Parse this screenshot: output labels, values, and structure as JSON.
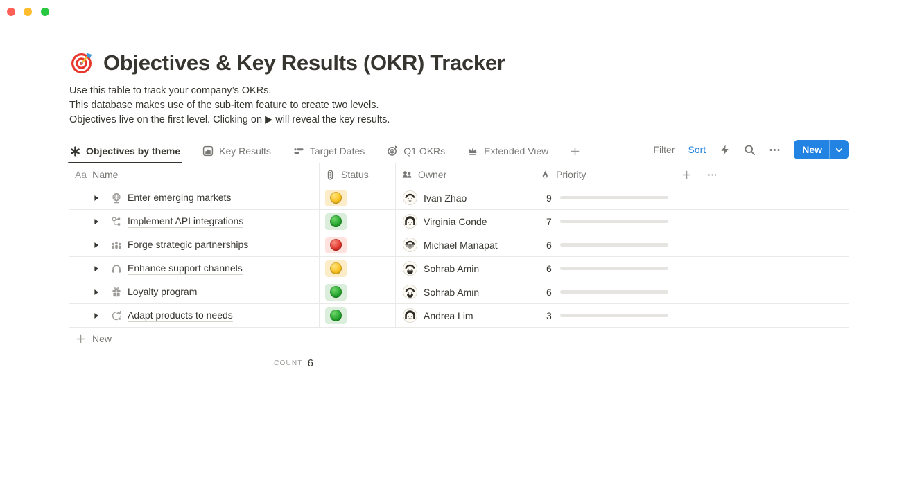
{
  "page": {
    "title": "Objectives & Key Results (OKR) Tracker",
    "title_icon": "dart-target",
    "description_lines": [
      "Use this table to track your company’s OKRs.",
      "This database makes use of the sub-item feature to create two levels.",
      "Objectives live on the first level. Clicking on ▶ will reveal the key results."
    ]
  },
  "toolbar": {
    "tabs": [
      {
        "label": "Objectives by theme",
        "icon": "asterisk",
        "active": true
      },
      {
        "label": "Key Results",
        "icon": "chart",
        "active": false
      },
      {
        "label": "Target Dates",
        "icon": "timeline",
        "active": false
      },
      {
        "label": "Q1 OKRs",
        "icon": "target",
        "active": false
      },
      {
        "label": "Extended View",
        "icon": "crown",
        "active": false
      }
    ],
    "filter_label": "Filter",
    "sort_label": "Sort",
    "new_button_label": "New"
  },
  "table": {
    "columns": [
      {
        "key": "name",
        "label": "Name",
        "icon": "aa"
      },
      {
        "key": "status",
        "label": "Status",
        "icon": "traffic-light"
      },
      {
        "key": "owner",
        "label": "Owner",
        "icon": "people"
      },
      {
        "key": "priority",
        "label": "Priority",
        "icon": "flame"
      }
    ],
    "rows": [
      {
        "name": "Enter emerging markets",
        "icon": "globe",
        "status": "yellow",
        "owner": "Ivan Zhao",
        "avatar": "short-hair",
        "priority": 9
      },
      {
        "name": "Implement API integrations",
        "icon": "api",
        "status": "green",
        "owner": "Virginia Conde",
        "avatar": "bob-hair",
        "priority": 7
      },
      {
        "name": "Forge strategic partnerships",
        "icon": "partnership",
        "status": "red",
        "owner": "Michael Manapat",
        "avatar": "short-hair-glasses",
        "priority": 6
      },
      {
        "name": "Enhance support channels",
        "icon": "headphones",
        "status": "yellow",
        "owner": "Sohrab Amin",
        "avatar": "short-hair-beard",
        "priority": 6
      },
      {
        "name": "Loyalty program",
        "icon": "gift",
        "status": "green",
        "owner": "Sohrab Amin",
        "avatar": "short-hair-beard",
        "priority": 6
      },
      {
        "name": "Adapt products to needs",
        "icon": "adapt",
        "status": "green",
        "owner": "Andrea Lim",
        "avatar": "bob-hair",
        "priority": 3
      }
    ],
    "priority_max": 10,
    "new_row_label": "New",
    "footer": {
      "count_label": "COUNT",
      "count_value": "6"
    }
  },
  "colors": {
    "accent_blue": "#2383E2",
    "text_dark": "#37352F",
    "text_gray": "#787774",
    "border": "#E9E9E7",
    "bar_fill": "#6D947E",
    "status_yellow_bg": "#FDECC8",
    "status_green_bg": "#DBEDDB",
    "status_red_bg": "#FFE2DD"
  }
}
